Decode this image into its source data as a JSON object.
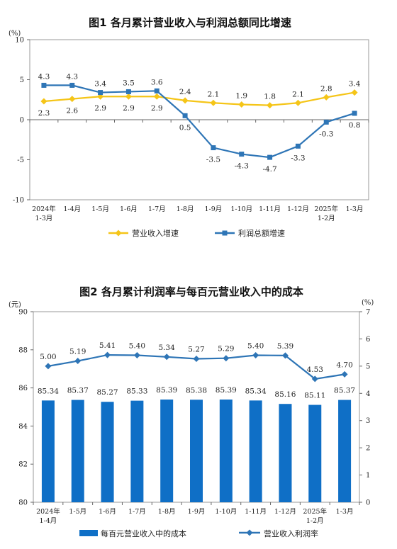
{
  "chart_data": [
    {
      "type": "line",
      "title": "图1  各月累计营业收入与利润总额同比增速",
      "yunit": "(%)",
      "ylim": [
        -10,
        10
      ],
      "yticks": [
        "10",
        "5",
        "0",
        "-5",
        "-10"
      ],
      "grid": false,
      "legend_position": "bottom",
      "categories": [
        {
          "l1": "2024年",
          "l2": "1-3月"
        },
        {
          "l1": "1-4月",
          "l2": ""
        },
        {
          "l1": "1-5月",
          "l2": ""
        },
        {
          "l1": "1-6月",
          "l2": ""
        },
        {
          "l1": "1-7月",
          "l2": ""
        },
        {
          "l1": "1-8月",
          "l2": ""
        },
        {
          "l1": "1-9月",
          "l2": ""
        },
        {
          "l1": "1-10月",
          "l2": ""
        },
        {
          "l1": "1-11月",
          "l2": ""
        },
        {
          "l1": "1-12月",
          "l2": ""
        },
        {
          "l1": "2025年",
          "l2": "1-2月"
        },
        {
          "l1": "1-3月",
          "l2": ""
        }
      ],
      "series": [
        {
          "name": "营业收入增速",
          "color": "#f5c518",
          "marker": "diamond",
          "values": [
            2.3,
            2.6,
            2.9,
            2.9,
            2.9,
            2.4,
            2.1,
            1.9,
            1.8,
            2.1,
            2.8,
            3.4
          ],
          "labels": [
            "2.3",
            "2.6",
            "2.9",
            "2.9",
            "2.9",
            "2.4",
            "2.1",
            "1.9",
            "1.8",
            "2.1",
            "2.8",
            "3.4"
          ]
        },
        {
          "name": "利润总额增速",
          "color": "#2e75b6",
          "marker": "square",
          "values": [
            4.3,
            4.3,
            3.4,
            3.5,
            3.6,
            0.5,
            -3.5,
            -4.3,
            -4.7,
            -3.3,
            -0.3,
            0.8
          ],
          "labels": [
            "4.3",
            "4.3",
            "3.4",
            "3.5",
            "3.6",
            "0.5",
            "-3.5",
            "-4.3",
            "-4.7",
            "-3.3",
            "-0.3",
            "0.8"
          ]
        }
      ]
    },
    {
      "type": "bar+line",
      "title": "图2  各月累计利润率与每百元营业收入中的成本",
      "left_unit": "(元)",
      "right_unit": "(%)",
      "ylim": [
        80,
        90
      ],
      "yticks": [
        "90",
        "88",
        "86",
        "84",
        "82",
        "80"
      ],
      "y2lim": [
        0,
        7
      ],
      "y2ticks": [
        "7",
        "6",
        "5",
        "4",
        "3",
        "2",
        "1",
        "0"
      ],
      "grid": false,
      "legend_position": "bottom",
      "categories": [
        {
          "l1": "2024年",
          "l2": "1-4月"
        },
        {
          "l1": "1-5月",
          "l2": ""
        },
        {
          "l1": "1-6月",
          "l2": ""
        },
        {
          "l1": "1-7月",
          "l2": ""
        },
        {
          "l1": "1-8月",
          "l2": ""
        },
        {
          "l1": "1-9月",
          "l2": ""
        },
        {
          "l1": "1-10月",
          "l2": ""
        },
        {
          "l1": "1-11月",
          "l2": ""
        },
        {
          "l1": "1-12月",
          "l2": ""
        },
        {
          "l1": "2025年",
          "l2": "1-2月"
        },
        {
          "l1": "1-3月",
          "l2": ""
        }
      ],
      "bar_series": {
        "name": "每百元营业收入中的成本",
        "color": "#0f6fc6",
        "axis": "left",
        "values": [
          85.34,
          85.37,
          85.27,
          85.33,
          85.39,
          85.38,
          85.39,
          85.34,
          85.16,
          85.11,
          85.37
        ],
        "labels": [
          "85.34",
          "85.37",
          "85.27",
          "85.33",
          "85.39",
          "85.38",
          "85.39",
          "85.34",
          "85.16",
          "85.11",
          "85.37"
        ]
      },
      "line_series": {
        "name": "营业收入利润率",
        "color": "#2e75b6",
        "axis": "right",
        "marker": "diamond",
        "values": [
          5.0,
          5.19,
          5.41,
          5.4,
          5.34,
          5.27,
          5.29,
          5.4,
          5.39,
          4.53,
          4.7
        ],
        "labels": [
          "5.00",
          "5.19",
          "5.41",
          "5.40",
          "5.34",
          "5.27",
          "5.29",
          "5.40",
          "5.39",
          "4.53",
          "4.70"
        ]
      }
    }
  ]
}
